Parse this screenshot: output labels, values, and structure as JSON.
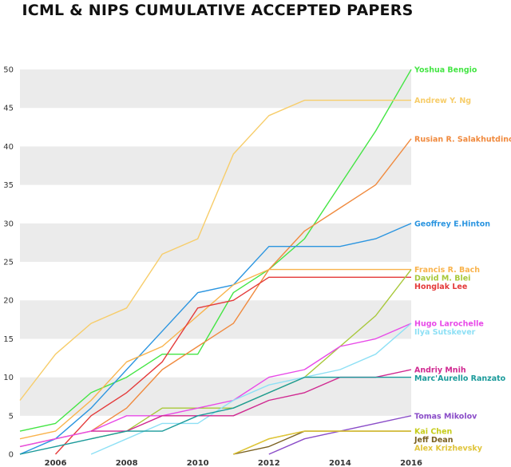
{
  "chart_data": {
    "type": "line",
    "title": "ICML & NIPS CUMULATIVE ACCEPTED PAPERS",
    "xlabel": "",
    "ylabel": "",
    "xlim": [
      2005,
      2016
    ],
    "ylim": [
      0,
      55
    ],
    "x_ticks": [
      2006,
      2008,
      2010,
      2012,
      2014,
      2016
    ],
    "y_ticks": [
      0,
      5,
      10,
      15,
      20,
      25,
      30,
      35,
      40,
      45,
      50
    ],
    "grid": "alternating horizontal bands",
    "legend": "direct labels at right end of each line",
    "x": [
      2005,
      2006,
      2007,
      2008,
      2009,
      2010,
      2011,
      2012,
      2013,
      2014,
      2015,
      2016
    ],
    "series": [
      {
        "name": "Yoshua Bengio",
        "color": "#44e544",
        "values": [
          3,
          4,
          8,
          10,
          13,
          13,
          21,
          24,
          28,
          35,
          42,
          50
        ]
      },
      {
        "name": "Andrew Y. Ng",
        "color": "#f7cd6a",
        "values": [
          7,
          13,
          17,
          19,
          26,
          28,
          39,
          44,
          46,
          46,
          46,
          46
        ]
      },
      {
        "name": "Rusian R. Salakhutdinov",
        "color": "#f08a3e",
        "values": [
          1,
          2,
          3,
          6,
          11,
          14,
          17,
          24,
          29,
          32,
          35,
          41
        ]
      },
      {
        "name": "Geoffrey E.Hinton",
        "color": "#2b95e0",
        "values": [
          0,
          2,
          6,
          11,
          16,
          21,
          22,
          27,
          27,
          27,
          28,
          30
        ]
      },
      {
        "name": "Francis R. Bach",
        "color": "#f9b34c",
        "values": [
          2,
          3,
          7,
          12,
          14,
          18,
          22,
          24,
          24,
          24,
          24,
          24
        ]
      },
      {
        "name": "Honglak Lee",
        "color": "#e43a3a",
        "values": [
          null,
          0,
          5,
          8,
          12,
          19,
          20,
          23,
          23,
          23,
          23,
          23
        ]
      },
      {
        "name": "David M. Blei",
        "color": "#a8c83a",
        "values": [
          null,
          null,
          2,
          3,
          6,
          6,
          6,
          8,
          10,
          14,
          18,
          24
        ]
      },
      {
        "name": "Hugo Larochelle",
        "color": "#e84ae8",
        "values": [
          1,
          2,
          3,
          5,
          5,
          6,
          7,
          10,
          11,
          14,
          15,
          17
        ]
      },
      {
        "name": "Ilya Sutskever",
        "color": "#8ee0f5",
        "values": [
          null,
          null,
          0,
          2,
          4,
          4,
          7,
          9,
          10,
          11,
          13,
          17
        ]
      },
      {
        "name": "Andriy Mnih",
        "color": "#d02890",
        "values": [
          null,
          null,
          3,
          3,
          5,
          5,
          5,
          7,
          8,
          10,
          10,
          11
        ]
      },
      {
        "name": "Marc'Aurello Ranzato",
        "color": "#1a9a9a",
        "values": [
          0,
          1,
          2,
          3,
          3,
          5,
          6,
          8,
          10,
          10,
          10,
          10
        ]
      },
      {
        "name": "Tomas Mikolov",
        "color": "#8a4cc8",
        "values": [
          null,
          null,
          null,
          null,
          null,
          null,
          null,
          0,
          2,
          3,
          4,
          5
        ]
      },
      {
        "name": "Kai Chen",
        "color": "#c6cc1a",
        "values": [
          null,
          null,
          null,
          null,
          null,
          null,
          0,
          2,
          3,
          3,
          3,
          3
        ]
      },
      {
        "name": "Jeff Dean",
        "color": "#7a6020",
        "values": [
          null,
          null,
          null,
          null,
          null,
          null,
          0,
          1,
          3,
          3,
          3,
          3
        ]
      },
      {
        "name": "Alex Krizhevsky",
        "color": "#e0c43a",
        "values": [
          null,
          null,
          null,
          null,
          null,
          null,
          0,
          2,
          3,
          3,
          3,
          3
        ]
      }
    ]
  }
}
